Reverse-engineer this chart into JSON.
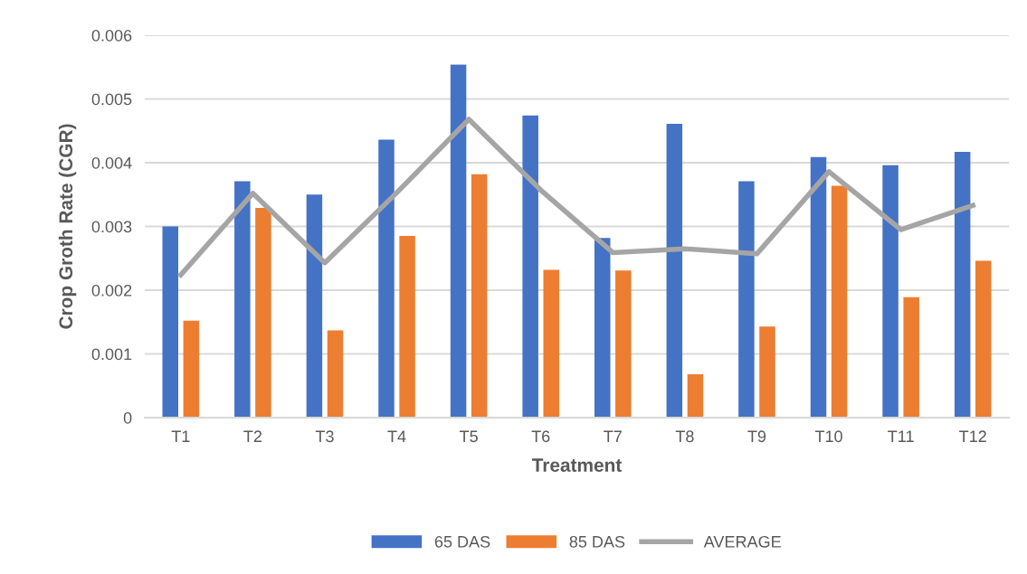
{
  "chart_data": {
    "type": "bar",
    "xlabel": "Treatment",
    "ylabel": "Crop Groth Rate (CGR)",
    "categories": [
      "T1",
      "T2",
      "T3",
      "T4",
      "T5",
      "T6",
      "T7",
      "T8",
      "T9",
      "T10",
      "T11",
      "T12"
    ],
    "series": [
      {
        "name": "65 DAS",
        "color": "#4472c4",
        "values": [
          0.003,
          0.00371,
          0.0035,
          0.00436,
          0.00554,
          0.00474,
          0.00282,
          0.00461,
          0.00371,
          0.00409,
          0.00396,
          0.00417
        ]
      },
      {
        "name": "85 DAS",
        "color": "#ed7d31",
        "values": [
          0.00152,
          0.00329,
          0.00137,
          0.00285,
          0.00382,
          0.00232,
          0.00231,
          0.00068,
          0.00143,
          0.00364,
          0.00189,
          0.00246
        ]
      },
      {
        "name": "AVERAGE",
        "type": "line",
        "color": "#a5a5a5",
        "values": [
          0.00224,
          0.00352,
          0.00243,
          0.00353,
          0.00468,
          0.00357,
          0.00259,
          0.00265,
          0.00257,
          0.00386,
          0.00295,
          0.00333
        ]
      }
    ],
    "ylim": [
      0,
      0.006
    ],
    "yticks": [
      0,
      0.001,
      0.002,
      0.003,
      0.004,
      0.005,
      0.006
    ],
    "grid": "y",
    "legend": "bottom",
    "marker": "none",
    "line_style": "solid"
  }
}
